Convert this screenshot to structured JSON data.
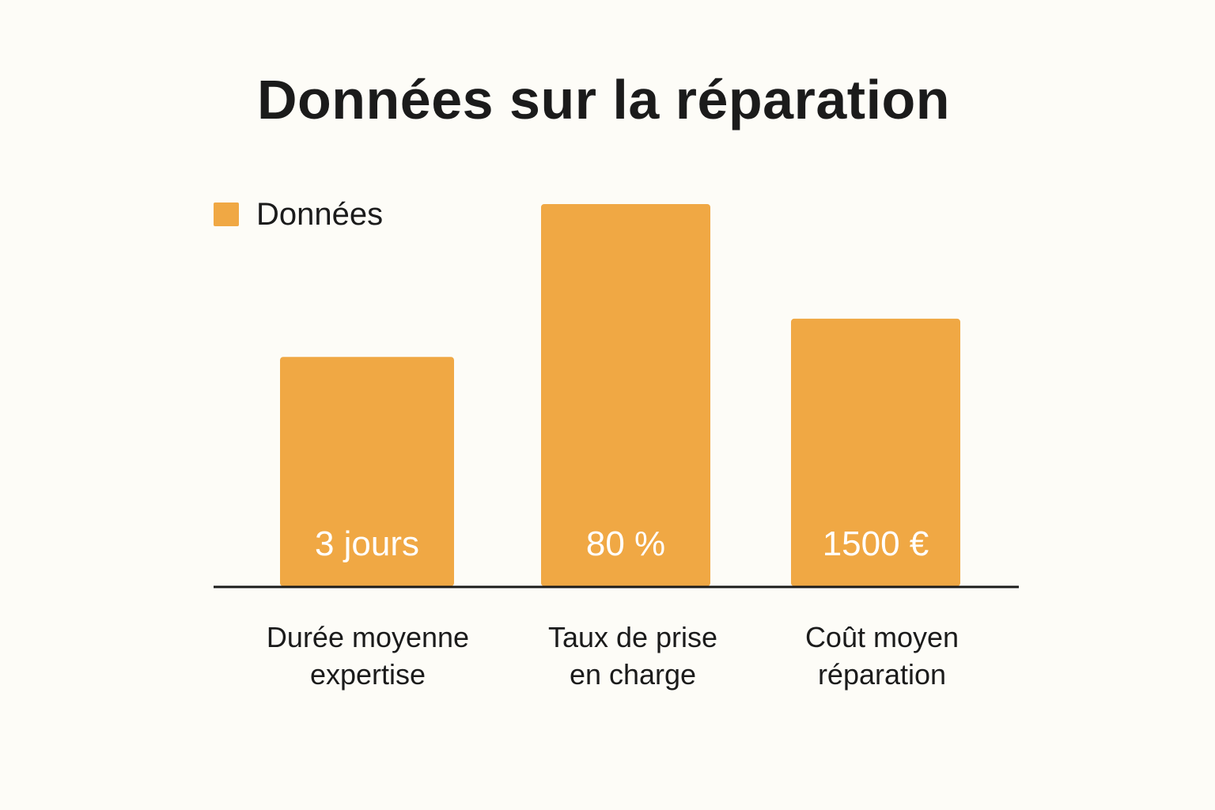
{
  "colors": {
    "background": "#fdfcf7",
    "bar": "#f0a844",
    "axis": "#1b1b1b",
    "value_label": "#ffffff"
  },
  "chart_data": {
    "type": "bar",
    "title": "Données sur la réparation",
    "legend": {
      "entries": [
        "Données"
      ],
      "position": "top-left"
    },
    "categories": [
      "Durée moyenne\nexpertise",
      "Taux de prise\nen charge",
      "Coût moyen\nréparation"
    ],
    "data_labels": [
      "3 jours",
      "80 %",
      "1500 €"
    ],
    "series": [
      {
        "name": "Données",
        "relative_heights": [
          0.6,
          1.0,
          0.7
        ]
      }
    ],
    "y_axis_shown": false,
    "grid": false
  }
}
